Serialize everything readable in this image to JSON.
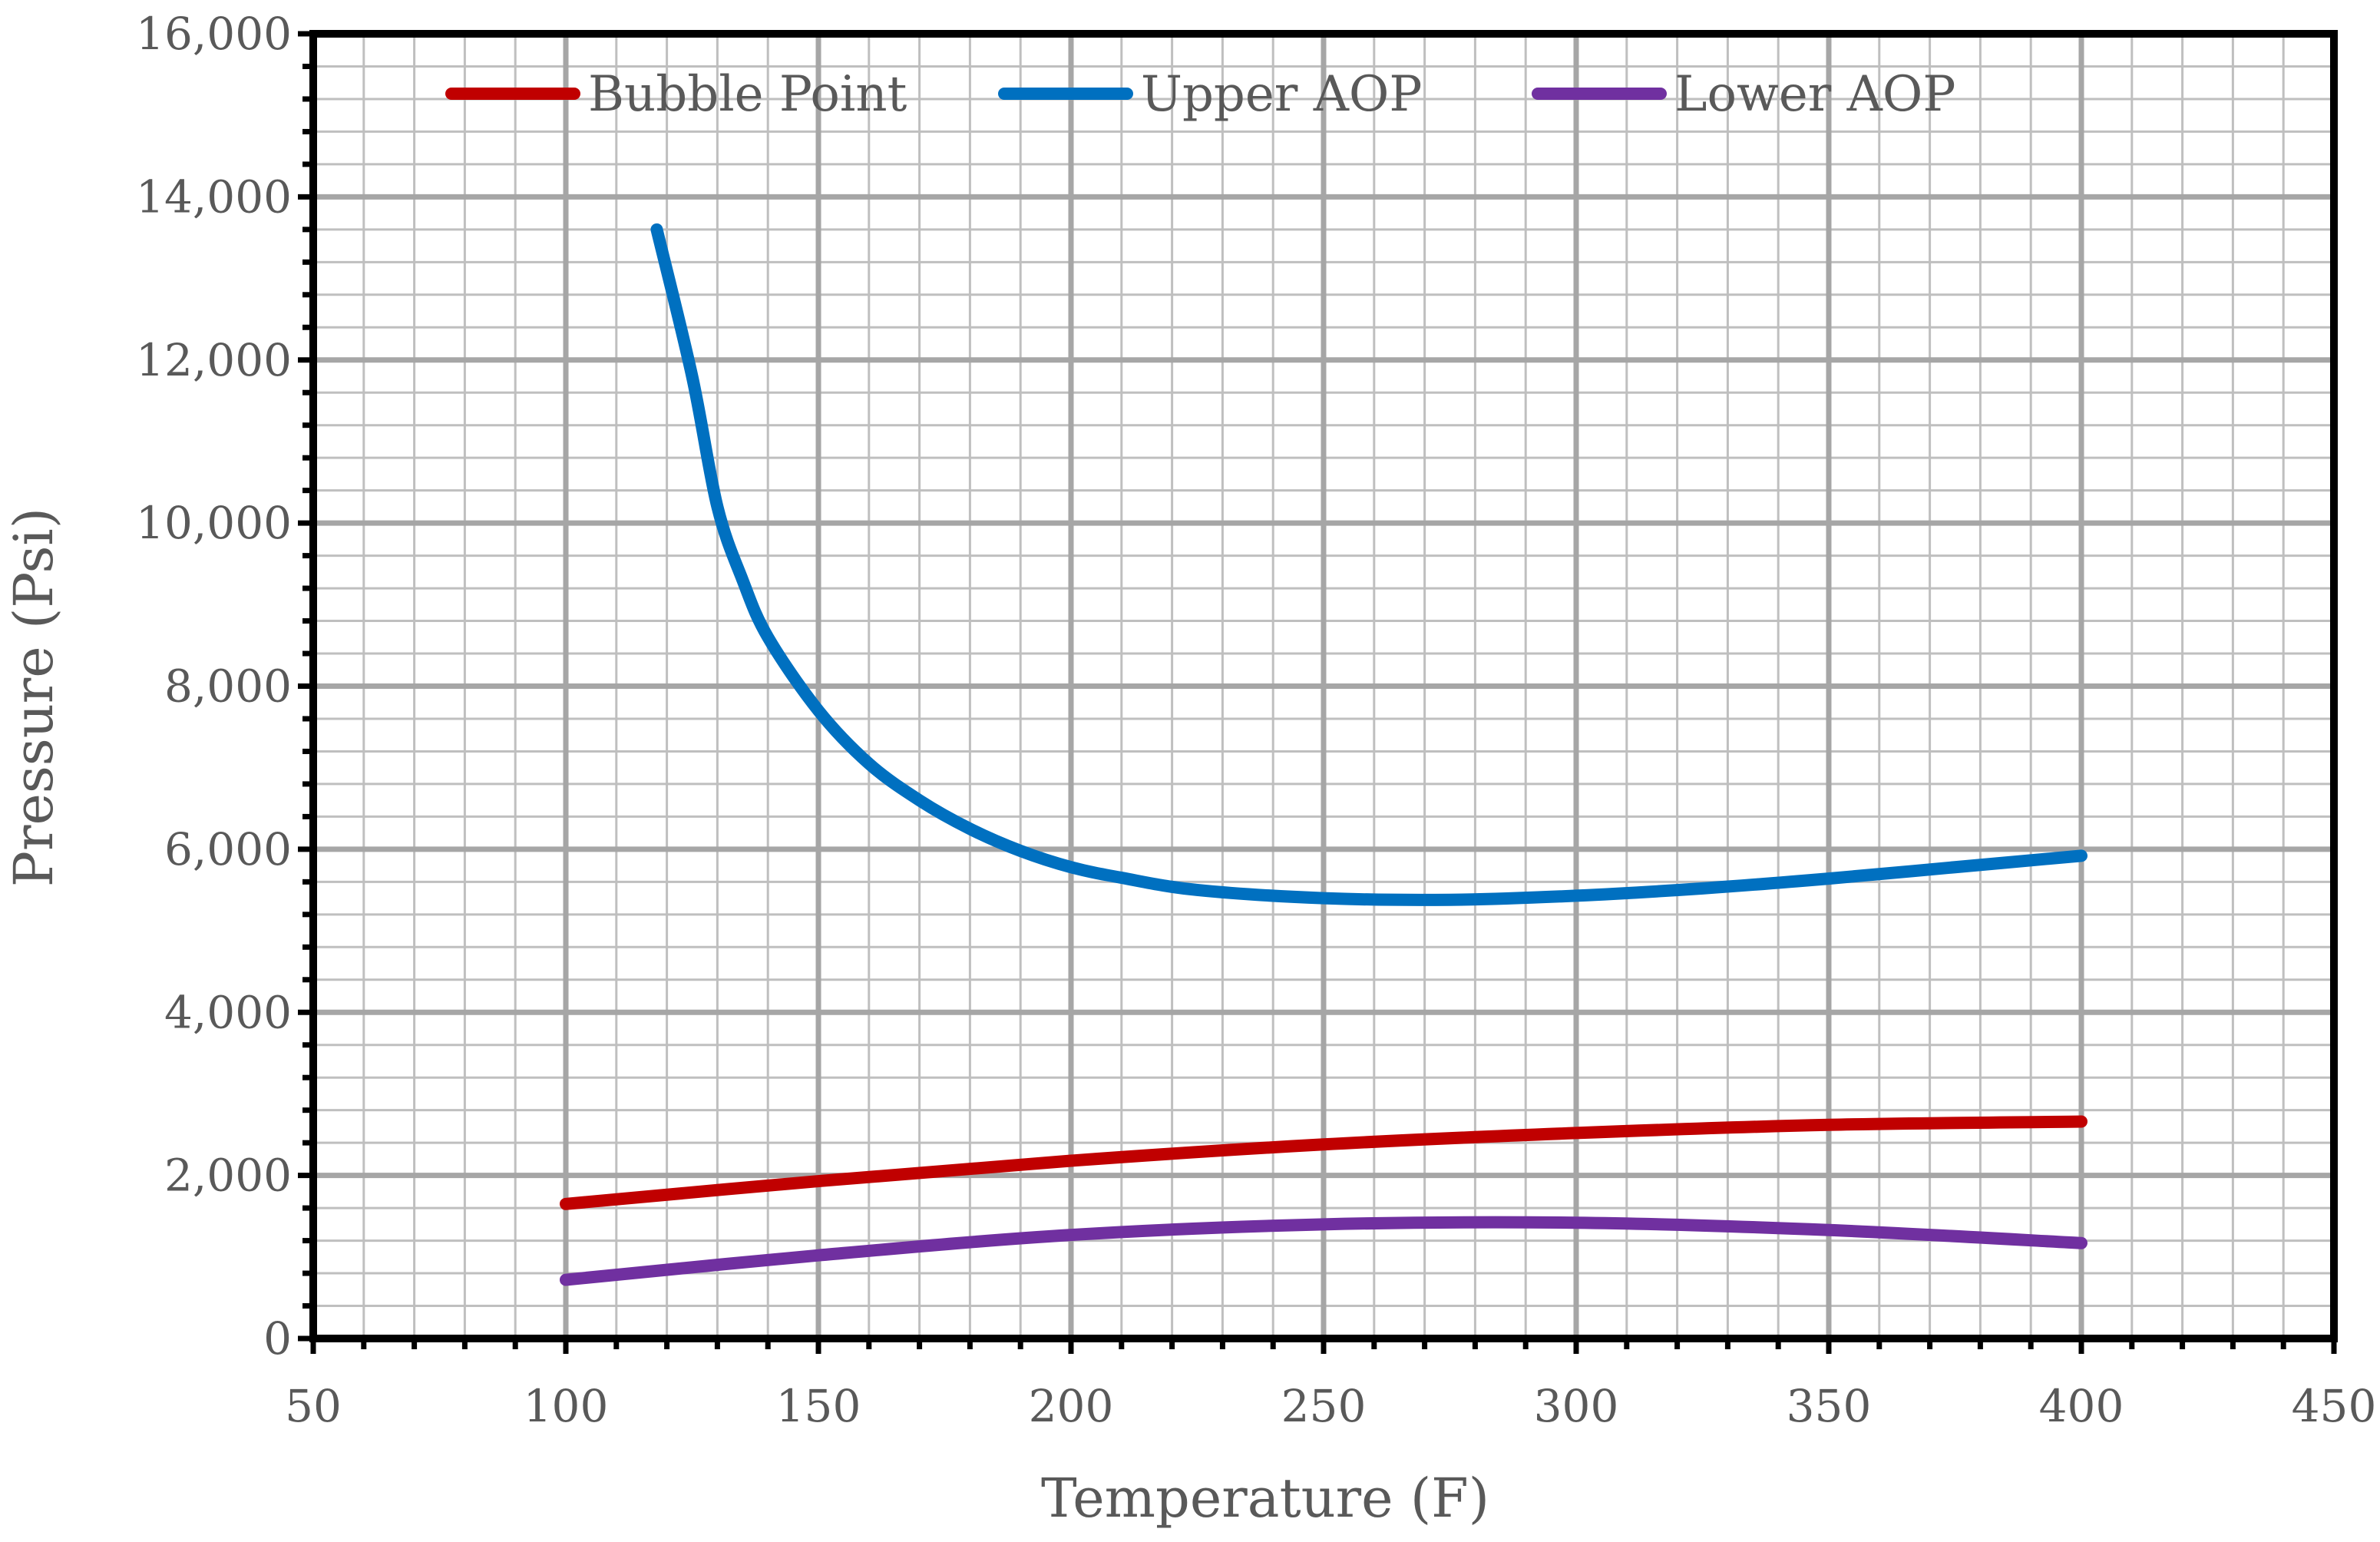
{
  "chart_data": {
    "type": "line",
    "title": "",
    "xlabel": "Temperature (F)",
    "ylabel": "Pressure (Psi)",
    "xlim": [
      50,
      450
    ],
    "ylim": [
      0,
      16000
    ],
    "xticks": [
      50,
      100,
      150,
      200,
      250,
      300,
      350,
      400,
      450
    ],
    "yticks": [
      0,
      2000,
      4000,
      6000,
      8000,
      10000,
      12000,
      14000,
      16000
    ],
    "ytick_labels": [
      "0",
      "2,000",
      "4,000",
      "6,000",
      "8,000",
      "10,000",
      "12,000",
      "14,000",
      "16,000"
    ],
    "grid": true,
    "legend_position": "top",
    "series": [
      {
        "name": "Bubble Point",
        "color": "#c00000",
        "x": [
          100,
          150,
          200,
          250,
          300,
          350,
          400
        ],
        "y": [
          1650,
          1930,
          2180,
          2380,
          2520,
          2620,
          2660
        ]
      },
      {
        "name": "Upper AOP",
        "color": "#0070c0",
        "x": [
          118,
          125,
          130,
          135,
          140,
          150,
          160,
          170,
          180,
          190,
          200,
          210,
          225,
          250,
          275,
          300,
          325,
          350,
          375,
          400
        ],
        "y": [
          13600,
          11800,
          10200,
          9300,
          8600,
          7700,
          7050,
          6600,
          6250,
          5980,
          5780,
          5650,
          5500,
          5400,
          5380,
          5430,
          5520,
          5640,
          5780,
          5920
        ]
      },
      {
        "name": "Lower AOP",
        "color": "#7030a0",
        "x": [
          100,
          150,
          200,
          250,
          300,
          350,
          400
        ],
        "y": [
          720,
          1020,
          1270,
          1400,
          1420,
          1330,
          1170
        ]
      }
    ]
  }
}
